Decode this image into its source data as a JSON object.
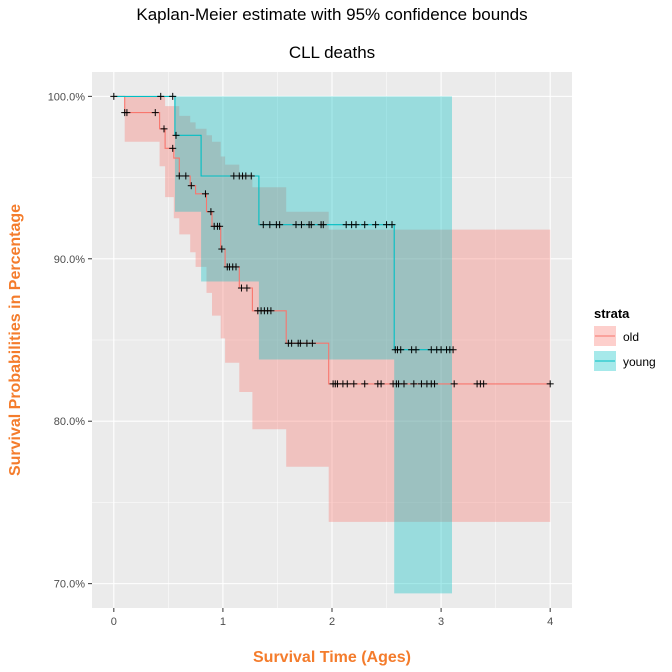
{
  "chart_data": {
    "type": "line",
    "subtype": "kaplan-meier step curve with confidence bands",
    "title": "Kaplan-Meier estimate with 95% confidence bounds",
    "subtitle": "CLL deaths",
    "xlabel": "Survival Time (Ages)",
    "ylabel": "Survival Probabilities in Percentage",
    "xlim": [
      -0.2,
      4.2
    ],
    "ylim": [
      0.685,
      1.015
    ],
    "x_ticks": [
      0,
      1,
      2,
      3,
      4
    ],
    "x_tick_labels": [
      "0",
      "1",
      "2",
      "3",
      "4"
    ],
    "y_ticks": [
      0.7,
      0.8,
      0.9,
      1.0
    ],
    "y_tick_labels": [
      "70.0%",
      "80.0%",
      "90.0%",
      "100.0%"
    ],
    "grid": true,
    "legend": {
      "title": "strata",
      "position": "right"
    },
    "series": [
      {
        "name": "old",
        "color": "#F8766D",
        "steps": [
          [
            0.0,
            1.0
          ],
          [
            0.1,
            0.99
          ],
          [
            0.42,
            0.98
          ],
          [
            0.47,
            0.968
          ],
          [
            0.55,
            0.962
          ],
          [
            0.6,
            0.951
          ],
          [
            0.7,
            0.945
          ],
          [
            0.75,
            0.94
          ],
          [
            0.85,
            0.929
          ],
          [
            0.9,
            0.92
          ],
          [
            0.98,
            0.906
          ],
          [
            1.02,
            0.895
          ],
          [
            1.15,
            0.882
          ],
          [
            1.27,
            0.868
          ],
          [
            1.58,
            0.848
          ],
          [
            1.97,
            0.823
          ],
          [
            4.0,
            0.823
          ]
        ],
        "lower": [
          [
            0.0,
            1.0
          ],
          [
            0.1,
            0.972
          ],
          [
            0.42,
            0.957
          ],
          [
            0.47,
            0.938
          ],
          [
            0.55,
            0.925
          ],
          [
            0.6,
            0.915
          ],
          [
            0.7,
            0.904
          ],
          [
            0.75,
            0.895
          ],
          [
            0.85,
            0.879
          ],
          [
            0.9,
            0.865
          ],
          [
            0.98,
            0.851
          ],
          [
            1.02,
            0.836
          ],
          [
            1.15,
            0.818
          ],
          [
            1.27,
            0.795
          ],
          [
            1.58,
            0.772
          ],
          [
            1.97,
            0.738
          ],
          [
            4.0,
            0.738
          ]
        ],
        "upper": [
          [
            0.0,
            1.0
          ],
          [
            0.1,
            1.0
          ],
          [
            0.42,
            1.0
          ],
          [
            0.47,
            0.994
          ],
          [
            0.55,
            0.994
          ],
          [
            0.6,
            0.988
          ],
          [
            0.7,
            0.984
          ],
          [
            0.75,
            0.98
          ],
          [
            0.85,
            0.976
          ],
          [
            0.9,
            0.972
          ],
          [
            0.98,
            0.963
          ],
          [
            1.02,
            0.958
          ],
          [
            1.15,
            0.952
          ],
          [
            1.27,
            0.944
          ],
          [
            1.58,
            0.929
          ],
          [
            1.97,
            0.918
          ],
          [
            4.0,
            0.918
          ]
        ],
        "censor_x": [
          0.1,
          0.12,
          0.38,
          0.46,
          0.54,
          0.6,
          0.66,
          0.71,
          0.84,
          0.89,
          0.92,
          0.95,
          0.97,
          0.99,
          1.04,
          1.06,
          1.09,
          1.12,
          1.17,
          1.22,
          1.32,
          1.35,
          1.38,
          1.41,
          1.44,
          1.6,
          1.63,
          1.69,
          1.71,
          1.77,
          1.82,
          2.01,
          2.03,
          2.05,
          2.1,
          2.14,
          2.2,
          2.3,
          2.42,
          2.45,
          2.56,
          2.59,
          2.61,
          2.66,
          2.75,
          2.82,
          2.87,
          2.91,
          2.94,
          3.12,
          3.33,
          3.36,
          3.39,
          4.0
        ]
      },
      {
        "name": "young",
        "color": "#00BFC4",
        "steps": [
          [
            0.0,
            1.0
          ],
          [
            0.56,
            0.976
          ],
          [
            0.8,
            0.951
          ],
          [
            1.33,
            0.921
          ],
          [
            2.57,
            0.844
          ],
          [
            3.1,
            0.844
          ]
        ],
        "lower": [
          [
            0.0,
            1.0
          ],
          [
            0.56,
            0.929
          ],
          [
            0.8,
            0.886
          ],
          [
            1.33,
            0.838
          ],
          [
            2.57,
            0.694
          ],
          [
            3.1,
            0.694
          ]
        ],
        "upper": [
          [
            0.0,
            1.0
          ],
          [
            0.56,
            1.0
          ],
          [
            0.8,
            1.0
          ],
          [
            1.33,
            1.0
          ],
          [
            2.57,
            1.0
          ],
          [
            3.1,
            1.0
          ]
        ],
        "censor_x": [
          0.0,
          0.43,
          0.54,
          0.57,
          1.1,
          1.15,
          1.18,
          1.21,
          1.26,
          1.37,
          1.43,
          1.49,
          1.52,
          1.67,
          1.72,
          1.79,
          1.81,
          1.9,
          1.92,
          2.13,
          2.18,
          2.22,
          2.3,
          2.4,
          2.5,
          2.55,
          2.58,
          2.6,
          2.63,
          2.73,
          2.77,
          2.91,
          2.96,
          3.0,
          3.05,
          3.08,
          3.11
        ]
      }
    ]
  }
}
